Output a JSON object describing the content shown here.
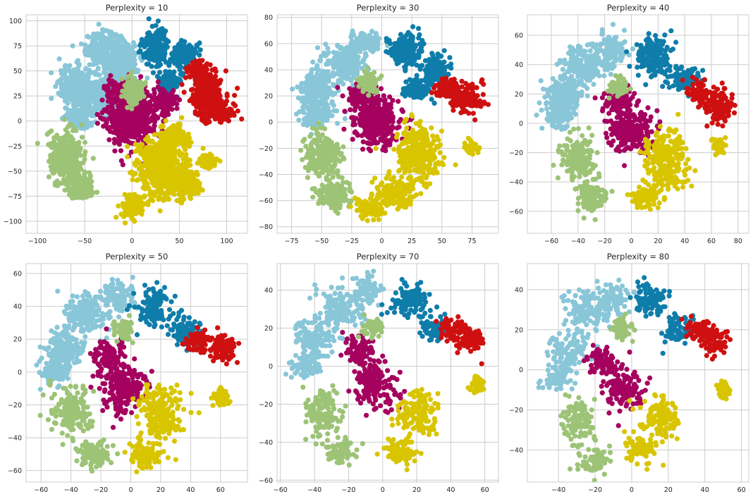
{
  "chart_data": [
    {
      "type": "scatter",
      "title": "Perplexity = 10",
      "xlabel": "",
      "ylabel": "",
      "xlim": [
        -112,
        122
      ],
      "ylim": [
        -112,
        106
      ],
      "xticks": [
        -100,
        -50,
        0,
        50,
        100
      ],
      "yticks": [
        -100,
        -75,
        -50,
        -25,
        0,
        25,
        50,
        75,
        100
      ],
      "grid": true,
      "legend": "none",
      "clusters": [
        {
          "color": "#88c6d8",
          "points": [
            [
              -30,
              72,
              17,
              15
            ],
            [
              -60,
              35,
              16,
              18
            ],
            [
              -30,
              25,
              18,
              18
            ],
            [
              -10,
              60,
              14,
              18
            ],
            [
              -55,
              5,
              14,
              10
            ]
          ]
        },
        {
          "color": "#0f7daa",
          "points": [
            [
              25,
              75,
              12,
              15
            ],
            [
              55,
              65,
              12,
              12
            ],
            [
              40,
              40,
              10,
              10
            ]
          ]
        },
        {
          "color": "#cf1010",
          "points": [
            [
              80,
              25,
              15,
              20
            ],
            [
              95,
              8,
              12,
              8
            ],
            [
              70,
              50,
              10,
              8
            ]
          ]
        },
        {
          "color": "#a5015f",
          "points": [
            [
              0,
              5,
              25,
              25
            ],
            [
              -10,
              30,
              15,
              10
            ],
            [
              35,
              20,
              10,
              10
            ]
          ]
        },
        {
          "color": "#9dc376",
          "points": [
            [
              -70,
              -35,
              16,
              22
            ],
            [
              -55,
              -65,
              12,
              12
            ],
            [
              0,
              30,
              10,
              12
            ]
          ]
        },
        {
          "color": "#d8c500",
          "points": [
            [
              30,
              -45,
              22,
              25
            ],
            [
              55,
              -60,
              15,
              15
            ],
            [
              45,
              -15,
              12,
              10
            ],
            [
              0,
              -85,
              12,
              10
            ],
            [
              80,
              -40,
              8,
              6
            ]
          ]
        }
      ]
    },
    {
      "type": "scatter",
      "title": "Perplexity = 30",
      "xlabel": "",
      "ylabel": "",
      "xlim": [
        -87,
        97
      ],
      "ylim": [
        -85,
        82
      ],
      "xticks": [
        -75,
        -50,
        -25,
        0,
        25,
        50,
        75
      ],
      "yticks": [
        -80,
        -60,
        -40,
        -20,
        0,
        20,
        40,
        60,
        80
      ],
      "grid": true,
      "legend": "none",
      "clusters": [
        {
          "color": "#88c6d8",
          "points": [
            [
              -30,
              45,
              16,
              12
            ],
            [
              -55,
              25,
              14,
              14
            ],
            [
              -15,
              60,
              12,
              8
            ],
            [
              -55,
              5,
              12,
              8
            ]
          ]
        },
        {
          "color": "#0f7daa",
          "points": [
            [
              20,
              55,
              12,
              12
            ],
            [
              45,
              40,
              10,
              10
            ],
            [
              30,
              25,
              10,
              8
            ]
          ]
        },
        {
          "color": "#cf1010",
          "points": [
            [
              70,
              18,
              12,
              10
            ],
            [
              55,
              25,
              10,
              8
            ]
          ]
        },
        {
          "color": "#a5015f",
          "points": [
            [
              -5,
              0,
              18,
              18
            ],
            [
              -15,
              20,
              12,
              10
            ]
          ]
        },
        {
          "color": "#9dc376",
          "points": [
            [
              -50,
              -25,
              12,
              16
            ],
            [
              -40,
              -55,
              12,
              10
            ],
            [
              -10,
              30,
              8,
              8
            ]
          ]
        },
        {
          "color": "#d8c500",
          "points": [
            [
              30,
              -25,
              16,
              20
            ],
            [
              10,
              -55,
              14,
              10
            ],
            [
              -10,
              -65,
              10,
              8
            ],
            [
              75,
              -20,
              5,
              5
            ]
          ]
        }
      ]
    },
    {
      "type": "scatter",
      "title": "Perplexity = 40",
      "xlabel": "",
      "ylabel": "",
      "xlim": [
        -78,
        88
      ],
      "ylim": [
        -75,
        74
      ],
      "xticks": [
        -60,
        -40,
        -20,
        0,
        20,
        40,
        60,
        80
      ],
      "yticks": [
        -60,
        -40,
        -20,
        0,
        20,
        40,
        60
      ],
      "grid": true,
      "legend": "none",
      "clusters": [
        {
          "color": "#88c6d8",
          "points": [
            [
              -35,
              40,
              14,
              12
            ],
            [
              -50,
              20,
              12,
              12
            ],
            [
              -15,
              50,
              10,
              10
            ],
            [
              -55,
              5,
              10,
              8
            ]
          ]
        },
        {
          "color": "#0f7daa",
          "points": [
            [
              15,
              45,
              12,
              12
            ],
            [
              40,
              30,
              10,
              8
            ]
          ]
        },
        {
          "color": "#cf1010",
          "points": [
            [
              65,
              12,
              10,
              10
            ],
            [
              50,
              20,
              8,
              8
            ]
          ]
        },
        {
          "color": "#a5015f",
          "points": [
            [
              0,
              -5,
              15,
              15
            ],
            [
              -10,
              15,
              10,
              8
            ]
          ]
        },
        {
          "color": "#9dc376",
          "points": [
            [
              -40,
              -25,
              12,
              14
            ],
            [
              -30,
              -50,
              10,
              10
            ],
            [
              -10,
              25,
              6,
              6
            ]
          ]
        },
        {
          "color": "#d8c500",
          "points": [
            [
              25,
              -25,
              14,
              18
            ],
            [
              10,
              -50,
              10,
              8
            ],
            [
              65,
              -15,
              5,
              5
            ]
          ]
        }
      ]
    },
    {
      "type": "scatter",
      "title": "Perplexity = 50",
      "xlabel": "",
      "ylabel": "",
      "xlim": [
        -70,
        78
      ],
      "ylim": [
        -67,
        66
      ],
      "xticks": [
        -60,
        -40,
        -20,
        0,
        20,
        40,
        60
      ],
      "yticks": [
        -60,
        -40,
        -20,
        0,
        20,
        40,
        60
      ],
      "grid": true,
      "legend": "none",
      "clusters": [
        {
          "color": "#88c6d8",
          "points": [
            [
              -30,
              35,
              12,
              12
            ],
            [
              -45,
              15,
              12,
              12
            ],
            [
              -10,
              45,
              10,
              10
            ],
            [
              -50,
              0,
              10,
              8
            ]
          ]
        },
        {
          "color": "#0f7daa",
          "points": [
            [
              15,
              40,
              10,
              10
            ],
            [
              35,
              25,
              10,
              8
            ]
          ]
        },
        {
          "color": "#cf1010",
          "points": [
            [
              60,
              15,
              10,
              8
            ],
            [
              45,
              20,
              8,
              6
            ]
          ]
        },
        {
          "color": "#a5015f",
          "points": [
            [
              -5,
              -10,
              14,
              14
            ],
            [
              -15,
              10,
              10,
              8
            ]
          ]
        },
        {
          "color": "#9dc376",
          "points": [
            [
              -40,
              -25,
              12,
              14
            ],
            [
              -25,
              -50,
              10,
              8
            ],
            [
              -5,
              25,
              6,
              6
            ]
          ]
        },
        {
          "color": "#d8c500",
          "points": [
            [
              20,
              -25,
              12,
              15
            ],
            [
              10,
              -50,
              10,
              8
            ],
            [
              60,
              -15,
              5,
              5
            ]
          ]
        }
      ]
    },
    {
      "type": "scatter",
      "title": "Perplexity = 70",
      "xlabel": "",
      "ylabel": "",
      "xlim": [
        -62,
        68
      ],
      "ylim": [
        -61,
        54
      ],
      "xticks": [
        -60,
        -40,
        -20,
        0,
        20,
        40,
        60
      ],
      "yticks": [
        -60,
        -40,
        -20,
        0,
        20,
        40
      ],
      "grid": true,
      "legend": "none",
      "clusters": [
        {
          "color": "#88c6d8",
          "points": [
            [
              -25,
              30,
              12,
              10
            ],
            [
              -40,
              15,
              10,
              10
            ],
            [
              -10,
              40,
              8,
              8
            ],
            [
              -45,
              0,
              8,
              6
            ]
          ]
        },
        {
          "color": "#0f7daa",
          "points": [
            [
              15,
              35,
              10,
              8
            ],
            [
              30,
              20,
              8,
              6
            ]
          ]
        },
        {
          "color": "#cf1010",
          "points": [
            [
              50,
              15,
              8,
              6
            ],
            [
              40,
              20,
              6,
              5
            ]
          ]
        },
        {
          "color": "#a5015f",
          "points": [
            [
              -5,
              -10,
              12,
              12
            ],
            [
              -15,
              10,
              8,
              6
            ]
          ]
        },
        {
          "color": "#9dc376",
          "points": [
            [
              -35,
              -25,
              10,
              12
            ],
            [
              -25,
              -45,
              8,
              6
            ],
            [
              -5,
              20,
              5,
              5
            ]
          ]
        },
        {
          "color": "#d8c500",
          "points": [
            [
              20,
              -25,
              10,
              12
            ],
            [
              10,
              -45,
              8,
              6
            ],
            [
              55,
              -10,
              4,
              4
            ]
          ]
        }
      ]
    },
    {
      "type": "scatter",
      "title": "Perplexity = 80",
      "xlabel": "",
      "ylabel": "",
      "xlim": [
        -57,
        64
      ],
      "ylim": [
        -56,
        53
      ],
      "xticks": [
        -40,
        -20,
        0,
        20,
        40,
        60
      ],
      "yticks": [
        -40,
        -20,
        0,
        20,
        40
      ],
      "grid": true,
      "legend": "none",
      "clusters": [
        {
          "color": "#88c6d8",
          "points": [
            [
              -25,
              30,
              10,
              10
            ],
            [
              -35,
              10,
              10,
              8
            ],
            [
              -10,
              35,
              8,
              8
            ],
            [
              -40,
              -5,
              8,
              6
            ]
          ]
        },
        {
          "color": "#0f7daa",
          "points": [
            [
              10,
              35,
              8,
              8
            ],
            [
              25,
              20,
              8,
              6
            ]
          ]
        },
        {
          "color": "#cf1010",
          "points": [
            [
              45,
              15,
              8,
              6
            ],
            [
              35,
              20,
              6,
              5
            ]
          ]
        },
        {
          "color": "#a5015f",
          "points": [
            [
              -5,
              -10,
              10,
              10
            ],
            [
              -15,
              5,
              8,
              6
            ]
          ]
        },
        {
          "color": "#9dc376",
          "points": [
            [
              -30,
              -25,
              8,
              10
            ],
            [
              -20,
              -45,
              8,
              6
            ],
            [
              -5,
              20,
              5,
              5
            ]
          ]
        },
        {
          "color": "#d8c500",
          "points": [
            [
              15,
              -25,
              10,
              10
            ],
            [
              5,
              -40,
              8,
              6
            ],
            [
              50,
              -10,
              4,
              4
            ]
          ]
        }
      ]
    }
  ]
}
